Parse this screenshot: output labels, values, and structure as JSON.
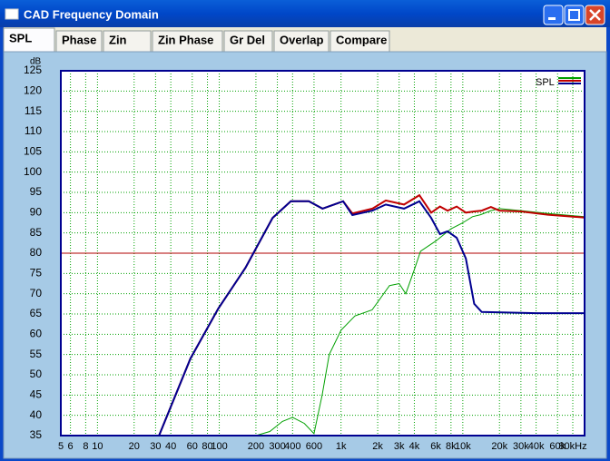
{
  "window": {
    "title": "CAD Frequency Domain",
    "tabs": [
      "SPL",
      "Phase",
      "Zin",
      "Zin Phase",
      "Gr Del",
      "Overlap",
      "Compare"
    ]
  },
  "chart_data": {
    "type": "line",
    "y_label": "dB",
    "legend_label": "SPL",
    "x_scale": "log",
    "grid": true,
    "xlim": [
      5,
      100000
    ],
    "ylim": [
      35,
      125
    ],
    "yticks": [
      35,
      40,
      45,
      50,
      55,
      60,
      65,
      70,
      75,
      80,
      85,
      90,
      95,
      100,
      105,
      110,
      115,
      120,
      125
    ],
    "xticks": [
      5,
      6,
      8,
      10,
      20,
      30,
      40,
      60,
      80,
      100,
      200,
      300,
      400,
      600,
      {
        "value": 1000,
        "label": "1k"
      },
      {
        "value": 2000,
        "label": "2k"
      },
      {
        "value": 3000,
        "label": "3k"
      },
      {
        "value": 4000,
        "label": "4k"
      },
      {
        "value": 6000,
        "label": "6k"
      },
      {
        "value": 8000,
        "label": "8k"
      },
      {
        "value": 10000,
        "label": "10k"
      },
      {
        "value": 20000,
        "label": "20k"
      },
      {
        "value": 30000,
        "label": "30k"
      },
      {
        "value": 40000,
        "label": "40k"
      },
      {
        "value": 60000,
        "label": "60k"
      },
      {
        "value": 80000,
        "label": "80kHz"
      }
    ],
    "hline": 80,
    "hline_color": "#b00000",
    "series": [
      {
        "color": "#00a000",
        "x": [
          30,
          200,
          260,
          330,
          400,
          500,
          600,
          700,
          800,
          1000,
          1300,
          1800,
          2500,
          3000,
          3400,
          4000,
          4500,
          6000,
          8000,
          10000,
          12000,
          14000,
          17000,
          20000,
          30000,
          50000,
          100000
        ],
        "values": [
          35,
          35,
          36,
          38.5,
          39.5,
          38,
          35.5,
          45,
          55,
          61,
          64.5,
          66,
          72,
          72.5,
          70,
          76,
          80.5,
          83,
          86,
          87.5,
          89,
          89.5,
          90.5,
          91,
          90.5,
          89.8,
          89
        ]
      },
      {
        "color": "#c00000",
        "x": [
          32,
          58,
          98,
          164,
          274,
          387,
          544,
          705,
          1040,
          1240,
          1810,
          2330,
          3290,
          4400,
          5500,
          6500,
          7500,
          8900,
          10600,
          12400,
          14300,
          17000,
          20000,
          30000,
          50000,
          100000
        ],
        "values": [
          35,
          54,
          66.3,
          76.4,
          88.7,
          92.8,
          92.8,
          91,
          92.8,
          89.8,
          91,
          93,
          92,
          94.3,
          90,
          91.5,
          90.5,
          91.5,
          90,
          90.3,
          90.5,
          91.4,
          90.5,
          90.3,
          89.5,
          88.8
        ]
      },
      {
        "color": "#000090",
        "x": [
          32,
          58,
          98,
          164,
          274,
          387,
          544,
          705,
          1040,
          1240,
          1810,
          2330,
          3290,
          4400,
          5500,
          6500,
          7500,
          8900,
          10600,
          12400,
          14300,
          40000,
          100000
        ],
        "values": [
          35,
          54,
          66.3,
          76.4,
          88.7,
          92.8,
          92.8,
          91,
          92.8,
          89.4,
          90.5,
          92,
          91,
          92.8,
          88.7,
          84.7,
          85.4,
          83.8,
          78.7,
          67.5,
          65.5,
          65.2,
          65.2
        ]
      }
    ]
  }
}
